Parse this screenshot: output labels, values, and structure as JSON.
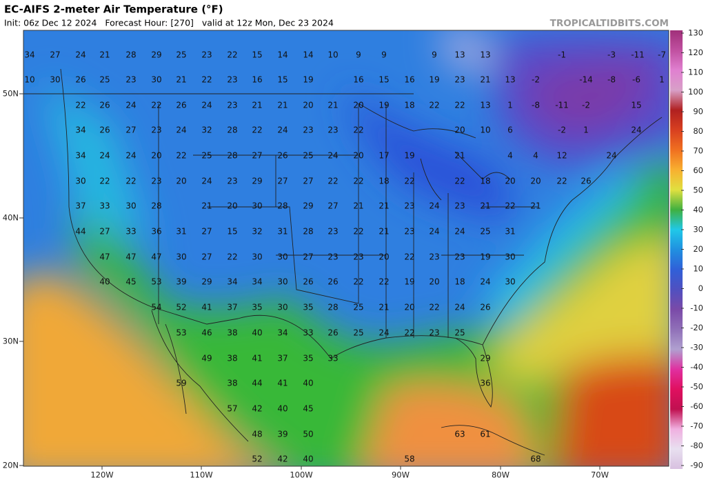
{
  "header": {
    "title": "EC-AIFS 2-meter Air Temperature (°F)",
    "subtitle": "Init: 06z Dec 12 2024   Forecast Hour: [270]   valid at 12z Mon, Dec 23 2024",
    "credit": "TROPICALTIDBITS.COM"
  },
  "map": {
    "lat_labels": [
      "50N",
      "40N",
      "30N",
      "20N"
    ],
    "lon_labels": [
      "120W",
      "110W",
      "100W",
      "90W",
      "80W",
      "70W"
    ],
    "temperatures": [
      [
        34,
        27,
        24,
        21,
        28,
        29,
        25,
        23,
        22,
        15,
        14,
        14,
        10,
        9,
        9,
        9,
        13,
        13,
        -1,
        -3,
        -11,
        -7
      ],
      [
        10,
        30,
        26,
        25,
        23,
        30,
        21,
        22,
        23,
        16,
        15,
        19,
        16,
        15,
        16,
        19,
        23,
        21,
        13,
        -2,
        -14,
        -8,
        -6,
        1
      ],
      [
        22,
        26,
        24,
        22,
        26,
        24,
        23,
        21,
        21,
        20,
        21,
        20,
        19,
        18,
        22,
        22,
        13,
        1,
        -8,
        -11,
        -2,
        15
      ],
      [
        34,
        26,
        27,
        23,
        24,
        32,
        28,
        22,
        24,
        23,
        23,
        22,
        20,
        10,
        6,
        -2,
        1,
        24
      ],
      [
        34,
        24,
        24,
        20,
        22,
        25,
        28,
        27,
        26,
        25,
        24,
        20,
        17,
        19,
        21,
        4,
        4,
        12,
        24
      ],
      [
        30,
        22,
        22,
        23,
        20,
        24,
        23,
        29,
        27,
        27,
        22,
        22,
        18,
        22,
        22,
        18,
        20,
        20,
        22,
        26
      ],
      [
        37,
        33,
        30,
        28,
        21,
        20,
        30,
        28,
        29,
        27,
        21,
        21,
        23,
        24,
        23,
        21,
        22,
        21
      ],
      [
        44,
        27,
        33,
        36,
        31,
        27,
        15,
        32,
        31,
        28,
        23,
        22,
        21,
        23,
        24,
        24,
        25,
        31
      ],
      [
        47,
        47,
        47,
        30,
        27,
        22,
        30,
        30,
        27,
        23,
        23,
        20,
        22,
        23,
        23,
        19,
        30
      ],
      [
        40,
        45,
        53,
        39,
        29,
        34,
        34,
        30,
        26,
        26,
        22,
        22,
        19,
        20,
        18,
        24,
        30
      ],
      [
        54,
        52,
        41,
        37,
        35,
        30,
        35,
        28,
        25,
        21,
        20,
        22,
        24,
        26
      ],
      [
        53,
        46,
        38,
        40,
        34,
        33,
        26,
        25,
        24,
        22,
        23,
        25
      ],
      [
        49,
        38,
        41,
        37,
        35,
        33,
        29
      ],
      [
        59,
        38,
        44,
        41,
        40,
        36
      ],
      [
        57,
        42,
        40,
        45
      ],
      [
        48,
        39,
        50,
        63,
        61
      ],
      [
        52,
        42,
        40,
        58,
        68
      ]
    ]
  },
  "colorbar": {
    "ticks": [
      130,
      120,
      110,
      100,
      90,
      80,
      70,
      60,
      50,
      40,
      30,
      20,
      10,
      0,
      -10,
      -20,
      -30,
      -40,
      -50,
      -60,
      -70,
      -80,
      -90
    ],
    "colors": [
      "#a0307a",
      "#c050a0",
      "#e080d0",
      "#d8a0c8",
      "#b02020",
      "#d84020",
      "#f07020",
      "#f8b030",
      "#e0e040",
      "#40b040",
      "#20c8e8",
      "#2090e0",
      "#3060d8",
      "#5050c0",
      "#7a4aa8",
      "#9070b8",
      "#b0a0d0",
      "#e030a0",
      "#e01060",
      "#c01050",
      "#f0b0e0",
      "#e8e0f0",
      "#d8c0e0"
    ]
  }
}
